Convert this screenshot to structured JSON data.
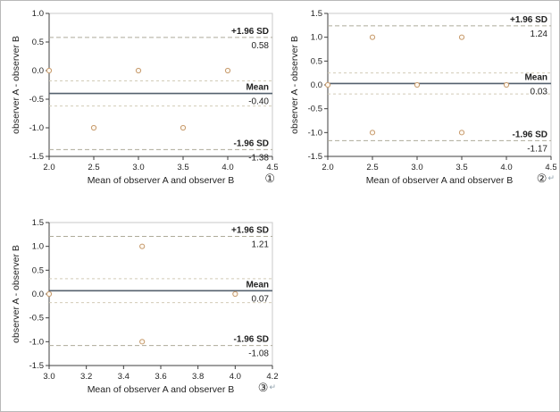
{
  "figure": {
    "background": "#ffffff",
    "border_color": "#b9b9b9"
  },
  "style": {
    "box_color": "#c9c9c9",
    "axis_color": "#3f3f3f",
    "text_color": "#1f1f1f",
    "sd_line_color": "#aeab9a",
    "ci_line_color": "#d2cbb8",
    "mean_line_color": "#55616e",
    "point_color": "#c79b6d",
    "point_fill": "#fdf8f1",
    "panel_mark_color": "#8fa0ad"
  },
  "chart_data": [
    {
      "type": "scatter",
      "panel_label": "①",
      "return_mark": "",
      "xlabel": "Mean of observer A and observer B",
      "ylabel": "observer A - observer B",
      "xlim": [
        2.0,
        4.5
      ],
      "ylim": [
        -1.5,
        1.0
      ],
      "xticks": [
        2.0,
        2.5,
        3.0,
        3.5,
        4.0,
        4.5
      ],
      "yticks": [
        -1.5,
        -1.0,
        -0.5,
        0.0,
        0.5,
        1.0
      ],
      "points": [
        [
          2.0,
          0.0
        ],
        [
          2.5,
          -1.0
        ],
        [
          3.0,
          0.0
        ],
        [
          3.5,
          -1.0
        ],
        [
          4.0,
          0.0
        ]
      ],
      "upper_loa": {
        "label": "+1.96 SD",
        "value": 0.58,
        "text": "0.58"
      },
      "mean": {
        "label": "Mean",
        "value": -0.4,
        "text": "-0.40"
      },
      "lower_loa": {
        "label": "-1.96 SD",
        "value": -1.38,
        "text": "-1.38"
      },
      "ci_mean": [
        -0.18,
        -0.62
      ]
    },
    {
      "type": "scatter",
      "panel_label": "②",
      "return_mark": "↵",
      "xlabel": "Mean of observer A and observer B",
      "ylabel": "observer A - observer B",
      "xlim": [
        2.0,
        4.5
      ],
      "ylim": [
        -1.5,
        1.5
      ],
      "xticks": [
        2.0,
        2.5,
        3.0,
        3.5,
        4.0,
        4.5
      ],
      "yticks": [
        -1.5,
        -1.0,
        -0.5,
        0.0,
        0.5,
        1.0,
        1.5
      ],
      "points": [
        [
          2.0,
          0.0
        ],
        [
          2.5,
          1.0
        ],
        [
          2.5,
          -1.0
        ],
        [
          3.0,
          0.0
        ],
        [
          3.5,
          1.0
        ],
        [
          3.5,
          -1.0
        ],
        [
          4.0,
          0.0
        ]
      ],
      "upper_loa": {
        "label": "+1.96 SD",
        "value": 1.24,
        "text": "1.24"
      },
      "mean": {
        "label": "Mean",
        "value": 0.03,
        "text": "0.03"
      },
      "lower_loa": {
        "label": "-1.96 SD",
        "value": -1.17,
        "text": "-1.17"
      },
      "ci_mean": [
        0.25,
        -0.19
      ]
    },
    {
      "type": "scatter",
      "panel_label": "③",
      "return_mark": "↵",
      "xlabel": "Mean of observer A and observer B",
      "ylabel": "observer A - observer B",
      "xlim": [
        3.0,
        4.2
      ],
      "ylim": [
        -1.5,
        1.5
      ],
      "xticks": [
        3.0,
        3.2,
        3.4,
        3.6,
        3.8,
        4.0,
        4.2
      ],
      "yticks": [
        -1.5,
        -1.0,
        -0.5,
        0.0,
        0.5,
        1.0,
        1.5
      ],
      "points": [
        [
          3.0,
          0.0
        ],
        [
          3.5,
          1.0
        ],
        [
          3.5,
          -1.0
        ],
        [
          4.0,
          0.0
        ]
      ],
      "upper_loa": {
        "label": "+1.96 SD",
        "value": 1.21,
        "text": "1.21"
      },
      "mean": {
        "label": "Mean",
        "value": 0.07,
        "text": "0.07"
      },
      "lower_loa": {
        "label": "-1.96 SD",
        "value": -1.08,
        "text": "-1.08"
      },
      "ci_mean": [
        0.32,
        -0.18
      ]
    }
  ]
}
